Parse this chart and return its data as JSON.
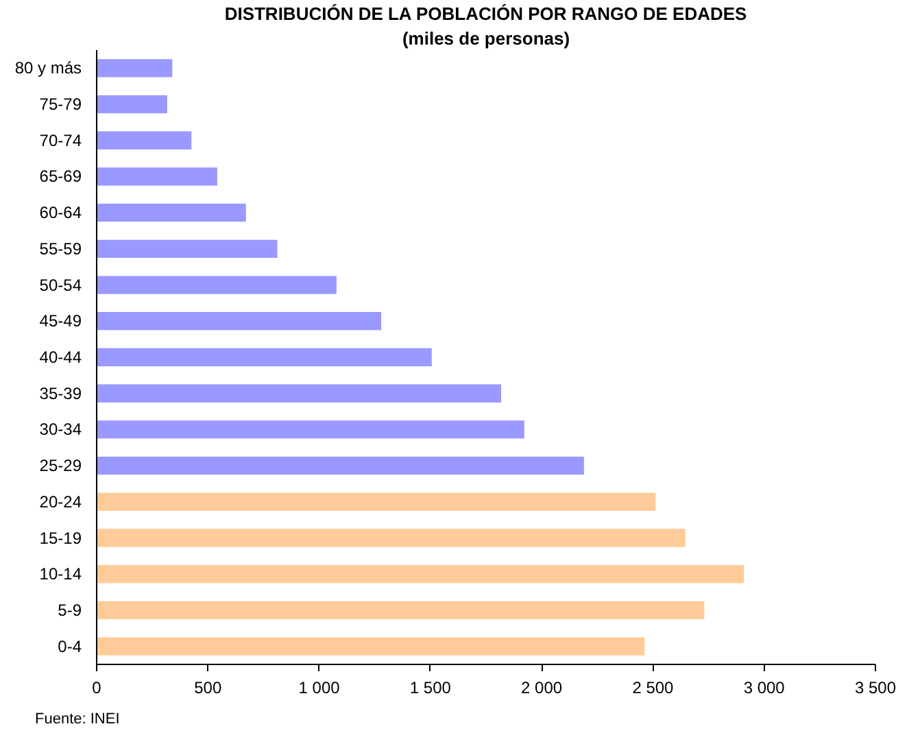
{
  "chart_data": {
    "type": "bar",
    "orientation": "horizontal",
    "title": "DISTRIBUCIÓN DE LA POBLACIÓN POR RANGO DE EDADES",
    "subtitle": "(miles de personas)",
    "categories": [
      "80 y más",
      "75-79",
      "70-74",
      "65-69",
      "60-64",
      "55-59",
      "50-54",
      "45-49",
      "40-44",
      "35-39",
      "30-34",
      "25-29",
      "20-24",
      "15-19",
      "10-14",
      "5-9",
      "0-4"
    ],
    "values": [
      340,
      317,
      426,
      542,
      671,
      812,
      1078,
      1279,
      1506,
      1818,
      1922,
      2190,
      2512,
      2646,
      2909,
      2731,
      2463
    ],
    "colors": [
      "#9999ff",
      "#9999ff",
      "#9999ff",
      "#9999ff",
      "#9999ff",
      "#9999ff",
      "#9999ff",
      "#9999ff",
      "#9999ff",
      "#9999ff",
      "#9999ff",
      "#9999ff",
      "#ffcc99",
      "#ffcc99",
      "#ffcc99",
      "#ffcc99",
      "#ffcc99"
    ],
    "xlim": [
      0,
      3500
    ],
    "xticks": [
      0,
      500,
      {
        "value": 1000,
        "label": "1 000"
      },
      {
        "value": 1500,
        "label": "1 500"
      },
      {
        "value": 2000,
        "label": "2 000"
      },
      {
        "value": 2500,
        "label": "2 500"
      },
      {
        "value": 3000,
        "label": "3 000"
      },
      {
        "value": 3500,
        "label": "3 500"
      }
    ],
    "grid": false,
    "annotations": [
      "Fuente: INEI"
    ]
  }
}
